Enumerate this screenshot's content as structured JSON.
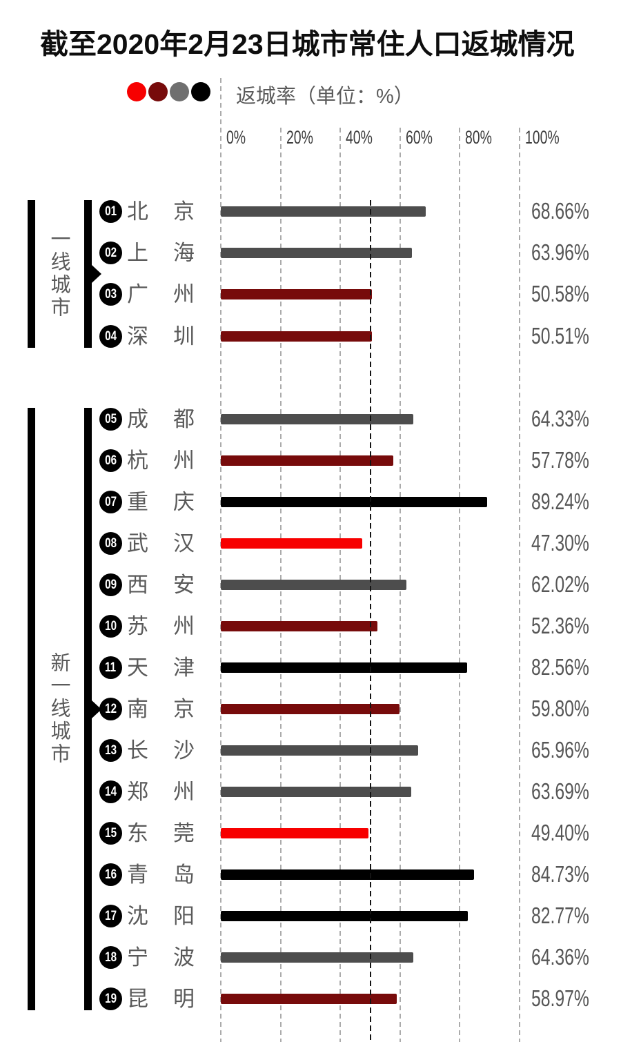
{
  "title": "截至2020年2月23日城市常住人口返城情况",
  "legend": {
    "dot_colors": [
      "#f70000",
      "#770b0b",
      "#6f6f6f",
      "#000000"
    ],
    "label": "返城率（单位：%）"
  },
  "chart_data": {
    "type": "bar",
    "orientation": "horizontal",
    "title": "截至2020年2月23日城市常住人口返城情况",
    "value_unit": "%",
    "axis": {
      "min": 0,
      "max": 100,
      "tick_values": [
        0,
        20,
        40,
        60,
        80,
        100
      ],
      "tick_labels": [
        "0%",
        "20%",
        "40%",
        "60%",
        "80%",
        "100%"
      ],
      "threshold_value": 50,
      "grid": "dashed-vertical"
    },
    "bar_colors": {
      "red": "#f70000",
      "darkred": "#770b0b",
      "gray": "#4d4d4d",
      "black": "#000000"
    },
    "groups": [
      {
        "label": "一线城市",
        "cities": [
          {
            "rank": "01",
            "name": "北京",
            "value": 68.66,
            "display": "68.66%",
            "color": "gray"
          },
          {
            "rank": "02",
            "name": "上海",
            "value": 63.96,
            "display": "63.96%",
            "color": "gray"
          },
          {
            "rank": "03",
            "name": "广州",
            "value": 50.58,
            "display": "50.58%",
            "color": "darkred"
          },
          {
            "rank": "04",
            "name": "深圳",
            "value": 50.51,
            "display": "50.51%",
            "color": "darkred"
          }
        ]
      },
      {
        "label": "新一线城市",
        "cities": [
          {
            "rank": "05",
            "name": "成都",
            "value": 64.33,
            "display": "64.33%",
            "color": "gray"
          },
          {
            "rank": "06",
            "name": "杭州",
            "value": 57.78,
            "display": "57.78%",
            "color": "darkred"
          },
          {
            "rank": "07",
            "name": "重庆",
            "value": 89.24,
            "display": "89.24%",
            "color": "black"
          },
          {
            "rank": "08",
            "name": "武汉",
            "value": 47.3,
            "display": "47.30%",
            "color": "red"
          },
          {
            "rank": "09",
            "name": "西安",
            "value": 62.02,
            "display": "62.02%",
            "color": "gray"
          },
          {
            "rank": "10",
            "name": "苏州",
            "value": 52.36,
            "display": "52.36%",
            "color": "darkred"
          },
          {
            "rank": "11",
            "name": "天津",
            "value": 82.56,
            "display": "82.56%",
            "color": "black"
          },
          {
            "rank": "12",
            "name": "南京",
            "value": 59.8,
            "display": "59.80%",
            "color": "darkred"
          },
          {
            "rank": "13",
            "name": "长沙",
            "value": 65.96,
            "display": "65.96%",
            "color": "gray"
          },
          {
            "rank": "14",
            "name": "郑州",
            "value": 63.69,
            "display": "63.69%",
            "color": "gray"
          },
          {
            "rank": "15",
            "name": "东莞",
            "value": 49.4,
            "display": "49.40%",
            "color": "red"
          },
          {
            "rank": "16",
            "name": "青岛",
            "value": 84.73,
            "display": "84.73%",
            "color": "black"
          },
          {
            "rank": "17",
            "name": "沈阳",
            "value": 82.77,
            "display": "82.77%",
            "color": "black"
          },
          {
            "rank": "18",
            "name": "宁波",
            "value": 64.36,
            "display": "64.36%",
            "color": "gray"
          },
          {
            "rank": "19",
            "name": "昆明",
            "value": 58.97,
            "display": "58.97%",
            "color": "darkred"
          }
        ]
      }
    ]
  }
}
